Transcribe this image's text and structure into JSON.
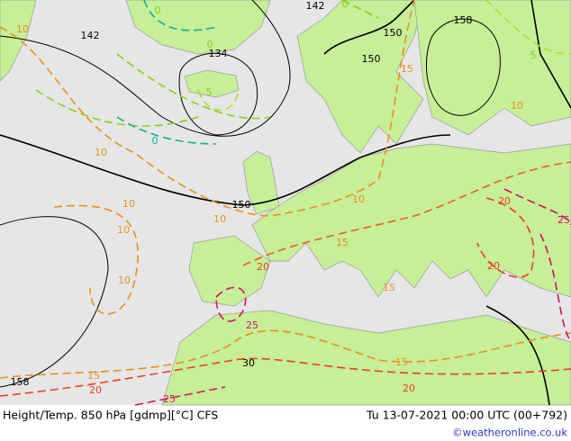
{
  "map": {
    "contour_labels": [
      142,
      0,
      10,
      142,
      0,
      0,
      134,
      5,
      0,
      150,
      150,
      158,
      15,
      5,
      10,
      10,
      150,
      10,
      10,
      10,
      10,
      15,
      20,
      20,
      25,
      20,
      15,
      10,
      25,
      30,
      15,
      20,
      158,
      25,
      15,
      20
    ]
  },
  "footer": {
    "title": "Height/Temp. 850 hPa [gdmp][°C] CFS",
    "datetime": "Tu 13-07-2021 00:00 UTC (00+792)",
    "credit": "©weatheronline.co.uk"
  }
}
